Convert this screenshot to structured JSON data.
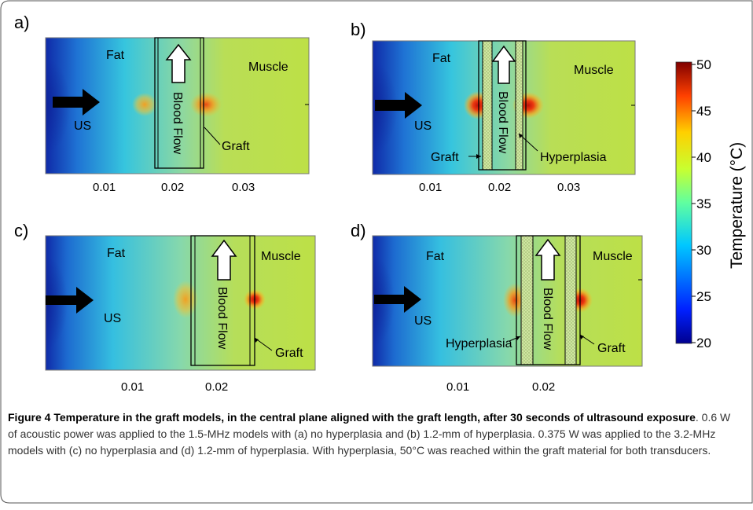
{
  "panels": [
    {
      "letter": "a)",
      "fat": "Fat",
      "muscle": "Muscle",
      "us": "US",
      "blood_flow": "Blood Flow",
      "graft": "Graft",
      "ticks": [
        "0.01",
        "0.02",
        "0.03"
      ]
    },
    {
      "letter": "b)",
      "fat": "Fat",
      "muscle": "Muscle",
      "us": "US",
      "blood_flow": "Blood Flow",
      "graft": "Graft",
      "hyperplasia": "Hyperplasia",
      "ticks": [
        "0.01",
        "0.02",
        "0.03"
      ]
    },
    {
      "letter": "c)",
      "fat": "Fat",
      "muscle": "Muscle",
      "us": "US",
      "blood_flow": "Blood Flow",
      "graft": "Graft",
      "ticks": [
        "0.01",
        "0.02"
      ]
    },
    {
      "letter": "d)",
      "fat": "Fat",
      "muscle": "Muscle",
      "us": "US",
      "blood_flow": "Blood Flow",
      "graft": "Graft",
      "hyperplasia": "Hyperplasia",
      "ticks": [
        "0.01",
        "0.02"
      ]
    }
  ],
  "colorbar": {
    "title": "Temperature (°C)",
    "ticks": [
      "50",
      "45",
      "40",
      "35",
      "30",
      "25",
      "20"
    ],
    "range": [
      20,
      50
    ]
  },
  "caption": {
    "bold": "Figure 4 Temperature in the graft models, in the central plane aligned with the graft length, after 30 seconds of ultrasound exposure",
    "text": ". 0.6 W of acoustic power was applied to the 1.5-MHz models with (a) no hyperplasia and (b) 1.2-mm of hyperplasia. 0.375 W was applied to the 3.2-MHz models with (c) no hyperplasia and (d) 1.2-mm of hyperplasia. With hyperplasia, 50°C was reached within the graft material for both transducers."
  },
  "colors": {
    "muscle": "#bde046",
    "fat_edge": "#102ea8",
    "fat_mid": "#36c5de",
    "hotspot": "#e22010"
  }
}
